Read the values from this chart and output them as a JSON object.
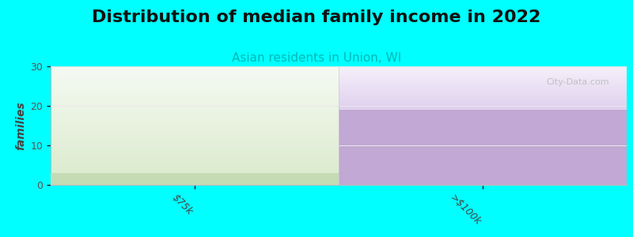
{
  "title": "Distribution of median family income in 2022",
  "subtitle": "Asian residents in Union, WI",
  "ylabel": "families",
  "categories": [
    "$75k",
    ">$100k"
  ],
  "values": [
    3,
    19
  ],
  "bar_solid_colors": [
    "#c4dbb4",
    "#c2a8d4"
  ],
  "bar_top_colors_start": [
    "#ddecd0",
    "#e0d0ee"
  ],
  "bar_top_colors_end": [
    "#f5faf2",
    "#f5f0fa"
  ],
  "background_color": "#00ffff",
  "plot_bg_color": "#ffffff",
  "ylim": [
    0,
    30
  ],
  "yticks": [
    0,
    10,
    20,
    30
  ],
  "title_fontsize": 16,
  "subtitle_fontsize": 11,
  "subtitle_color": "#00b8b8",
  "watermark": "City-Data.com",
  "tick_label_fontsize": 9,
  "grid_color": "#e8e8e8"
}
